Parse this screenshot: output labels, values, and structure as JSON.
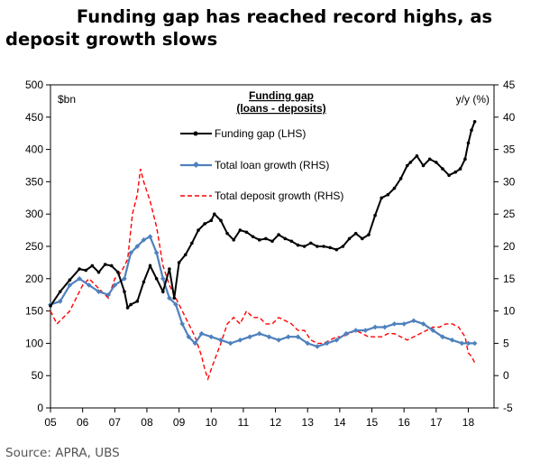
{
  "title_line1": "Funding gap has reached record highs, as",
  "title_line2": "deposit growth slows",
  "source": "Source:  APRA, UBS",
  "chart_data": {
    "type": "line",
    "title": "Funding gap",
    "subtitle": "(loans - deposits)",
    "ylabel_left": "$bn",
    "ylabel_right": "y/y (%)",
    "ylim_left": [
      0,
      500
    ],
    "ylim_right": [
      -5,
      45
    ],
    "yticks_left": [
      "0",
      "50",
      "100",
      "150",
      "200",
      "250",
      "300",
      "350",
      "400",
      "450",
      "500"
    ],
    "yticks_right": [
      "-5",
      "0",
      "5",
      "10",
      "15",
      "20",
      "25",
      "30",
      "35",
      "40",
      "45"
    ],
    "xlim": [
      2005,
      2018.8
    ],
    "xticks": [
      "05",
      "06",
      "07",
      "08",
      "09",
      "10",
      "11",
      "12",
      "13",
      "14",
      "15",
      "16",
      "17",
      "18"
    ],
    "legend_position": "top-center",
    "grid": false,
    "colors": {
      "gap": "#000000",
      "loan": "#4F81BD",
      "deposit": "#FF0000"
    },
    "series": [
      {
        "name": "Funding gap (LHS)",
        "axis": "left",
        "style": "line-dot",
        "x": [
          2005.0,
          2005.3,
          2005.6,
          2005.9,
          2006.1,
          2006.3,
          2006.5,
          2006.7,
          2006.9,
          2007.1,
          2007.3,
          2007.4,
          2007.5,
          2007.7,
          2007.9,
          2008.1,
          2008.3,
          2008.5,
          2008.7,
          2008.85,
          2009.0,
          2009.2,
          2009.4,
          2009.6,
          2009.8,
          2010.0,
          2010.1,
          2010.3,
          2010.5,
          2010.7,
          2010.9,
          2011.1,
          2011.3,
          2011.5,
          2011.7,
          2011.9,
          2012.1,
          2012.3,
          2012.5,
          2012.7,
          2012.9,
          2013.1,
          2013.3,
          2013.5,
          2013.7,
          2013.9,
          2014.1,
          2014.3,
          2014.5,
          2014.7,
          2014.9,
          2015.1,
          2015.3,
          2015.5,
          2015.7,
          2015.9,
          2016.1,
          2016.2,
          2016.4,
          2016.6,
          2016.8,
          2017.0,
          2017.2,
          2017.4,
          2017.6,
          2017.75,
          2017.9,
          2018.0,
          2018.1,
          2018.2
        ],
        "values": [
          158,
          180,
          198,
          215,
          213,
          220,
          210,
          222,
          220,
          210,
          180,
          155,
          160,
          165,
          195,
          220,
          200,
          180,
          215,
          170,
          225,
          237,
          255,
          275,
          285,
          290,
          300,
          290,
          270,
          260,
          275,
          272,
          265,
          260,
          262,
          258,
          268,
          262,
          258,
          252,
          250,
          255,
          250,
          250,
          248,
          245,
          250,
          262,
          270,
          262,
          268,
          298,
          325,
          330,
          340,
          355,
          375,
          380,
          390,
          375,
          385,
          380,
          370,
          360,
          365,
          370,
          385,
          410,
          430,
          443
        ]
      },
      {
        "name": "Total loan growth (RHS)",
        "axis": "right",
        "style": "line-diamond",
        "x": [
          2005.0,
          2005.3,
          2005.6,
          2005.9,
          2006.2,
          2006.5,
          2006.8,
          2007.0,
          2007.3,
          2007.5,
          2007.7,
          2007.9,
          2008.1,
          2008.3,
          2008.5,
          2008.7,
          2008.9,
          2009.1,
          2009.3,
          2009.5,
          2009.7,
          2010.0,
          2010.3,
          2010.6,
          2010.9,
          2011.2,
          2011.5,
          2011.8,
          2012.1,
          2012.4,
          2012.7,
          2013.0,
          2013.3,
          2013.6,
          2013.9,
          2014.2,
          2014.5,
          2014.8,
          2015.1,
          2015.4,
          2015.7,
          2016.0,
          2016.3,
          2016.6,
          2016.9,
          2017.2,
          2017.5,
          2017.8,
          2018.0,
          2018.2
        ],
        "values": [
          11,
          11.5,
          14,
          15,
          14,
          13,
          12.5,
          14,
          15,
          19,
          20,
          21,
          21.5,
          19,
          15,
          12,
          11,
          8,
          6,
          5,
          6.5,
          6,
          5.5,
          5,
          5.5,
          6,
          6.5,
          6,
          5.5,
          6,
          6,
          5,
          4.5,
          5,
          5.5,
          6.5,
          7,
          7,
          7.5,
          7.5,
          8,
          8,
          8.5,
          8,
          7,
          6,
          5.5,
          5,
          5,
          5
        ]
      },
      {
        "name": "Total deposit growth (RHS)",
        "axis": "right",
        "style": "dashed",
        "x": [
          2005.0,
          2005.2,
          2005.4,
          2005.6,
          2005.8,
          2006.0,
          2006.2,
          2006.4,
          2006.6,
          2006.8,
          2007.0,
          2007.2,
          2007.4,
          2007.55,
          2007.7,
          2007.8,
          2007.9,
          2008.1,
          2008.3,
          2008.5,
          2008.7,
          2008.9,
          2009.1,
          2009.3,
          2009.5,
          2009.7,
          2009.8,
          2009.9,
          2010.0,
          2010.15,
          2010.3,
          2010.5,
          2010.7,
          2010.9,
          2011.1,
          2011.3,
          2011.5,
          2011.7,
          2011.9,
          2012.1,
          2012.3,
          2012.5,
          2012.7,
          2012.9,
          2013.1,
          2013.3,
          2013.5,
          2013.7,
          2013.9,
          2014.1,
          2014.3,
          2014.5,
          2014.7,
          2014.9,
          2015.1,
          2015.3,
          2015.5,
          2015.7,
          2015.9,
          2016.1,
          2016.3,
          2016.5,
          2016.7,
          2016.9,
          2017.1,
          2017.3,
          2017.5,
          2017.7,
          2017.9,
          2018.0,
          2018.1,
          2018.2
        ],
        "values": [
          10,
          8,
          9,
          10,
          12,
          14,
          15,
          14,
          13,
          12,
          15,
          16,
          18,
          25,
          28,
          32,
          30,
          27,
          23,
          17,
          14,
          12,
          10,
          8,
          6,
          3,
          1,
          -0.5,
          1,
          3,
          5,
          8,
          9,
          8,
          10,
          9,
          9,
          8,
          8,
          9,
          8.5,
          8,
          7,
          7,
          5.5,
          5,
          5,
          5.5,
          6,
          6,
          6.5,
          7,
          6.5,
          6,
          6,
          6,
          6.5,
          6.5,
          6,
          5.5,
          6,
          6.5,
          7,
          7.5,
          7.5,
          8,
          8,
          7.5,
          6,
          3.5,
          3,
          2
        ]
      }
    ]
  }
}
